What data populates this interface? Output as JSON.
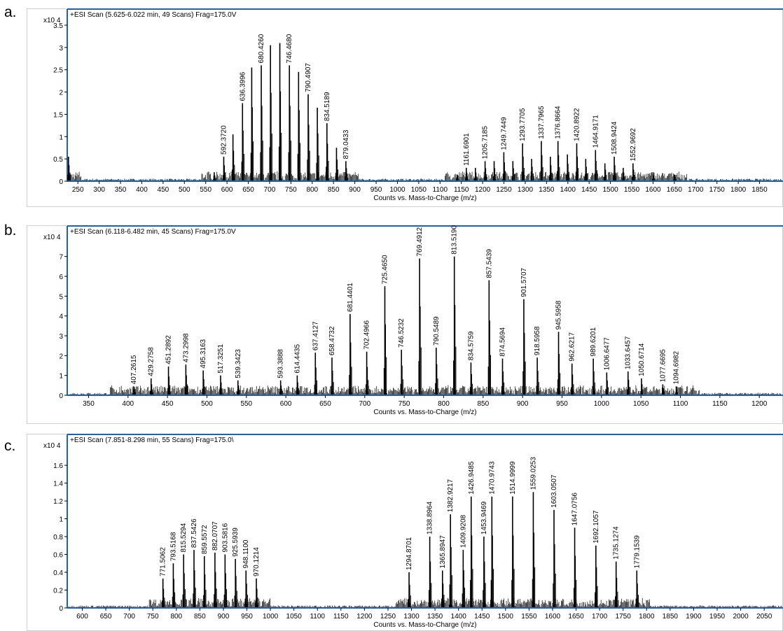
{
  "panels": [
    {
      "letter": "a.",
      "scan_label": "+ESI Scan (5.625-6.022 min, 49 Scans) Frag=175.0V"
    },
    {
      "letter": "b.",
      "scan_label": "+ESI Scan (6.118-6.482 min, 45 Scans) Frag=175.0V"
    },
    {
      "letter": "c.",
      "scan_label": "+ESI Scan (7.851-8.298 min, 55 Scans) Frag=175.0\\"
    }
  ],
  "chart_data": [
    {
      "type": "bar",
      "title": "+ESI Scan (5.625-6.022 min, 49 Scans) Frag=175.0V",
      "xlabel": "Counts vs. Mass-to-Charge (m/z)",
      "ylabel": "",
      "y_multiplier": "x10 4",
      "xlim": [
        225,
        1905
      ],
      "ylim": [
        0,
        3.5
      ],
      "xticks": [
        250,
        300,
        350,
        400,
        450,
        500,
        550,
        600,
        650,
        700,
        750,
        800,
        850,
        900,
        950,
        1000,
        1050,
        1100,
        1150,
        1200,
        1250,
        1300,
        1350,
        1400,
        1450,
        1500,
        1550,
        1600,
        1650,
        1700,
        1750,
        1800,
        1850
      ],
      "yticks": [
        0,
        0.5,
        1,
        1.5,
        2,
        2.5,
        3,
        3.5
      ],
      "peaks": [
        {
          "x": 228,
          "y": 0.55
        },
        {
          "x": 570,
          "y": 0.2
        },
        {
          "x": 592.372,
          "y": 0.55,
          "label": "592.3720"
        },
        {
          "x": 614,
          "y": 1.05
        },
        {
          "x": 636.3996,
          "y": 1.75,
          "label": "636.3996"
        },
        {
          "x": 658,
          "y": 2.55
        },
        {
          "x": 680.426,
          "y": 2.6,
          "label": "680.4260"
        },
        {
          "x": 702,
          "y": 3.05
        },
        {
          "x": 724,
          "y": 3.1
        },
        {
          "x": 746.468,
          "y": 2.6,
          "label": "746.4680"
        },
        {
          "x": 768,
          "y": 2.45
        },
        {
          "x": 790.4907,
          "y": 1.95,
          "label": "790.4907"
        },
        {
          "x": 812,
          "y": 1.65
        },
        {
          "x": 834.5189,
          "y": 1.3,
          "label": "834.5189"
        },
        {
          "x": 857,
          "y": 0.75
        },
        {
          "x": 879.0433,
          "y": 0.45,
          "label": "879.0433"
        },
        {
          "x": 1140,
          "y": 0.15
        },
        {
          "x": 1161.6901,
          "y": 0.3,
          "label": "1161.6901"
        },
        {
          "x": 1183,
          "y": 0.3
        },
        {
          "x": 1205.7185,
          "y": 0.45,
          "label": "1205.7185"
        },
        {
          "x": 1227,
          "y": 0.45
        },
        {
          "x": 1249.7449,
          "y": 0.65,
          "label": "1249.7449"
        },
        {
          "x": 1271,
          "y": 0.45
        },
        {
          "x": 1293.7705,
          "y": 0.85,
          "label": "1293.7705"
        },
        {
          "x": 1315,
          "y": 0.5
        },
        {
          "x": 1337.7965,
          "y": 0.9,
          "label": "1337.7965"
        },
        {
          "x": 1359,
          "y": 0.55
        },
        {
          "x": 1376.8664,
          "y": 0.9,
          "label": "1376.8664"
        },
        {
          "x": 1399,
          "y": 0.6
        },
        {
          "x": 1420.8922,
          "y": 0.85,
          "label": "1420.8922"
        },
        {
          "x": 1442,
          "y": 0.5
        },
        {
          "x": 1464.9171,
          "y": 0.7,
          "label": "1464.9171"
        },
        {
          "x": 1487,
          "y": 0.4
        },
        {
          "x": 1508.9424,
          "y": 0.55,
          "label": "1508.9424"
        },
        {
          "x": 1530,
          "y": 0.3
        },
        {
          "x": 1552.9692,
          "y": 0.4,
          "label": "1552.9692"
        },
        {
          "x": 1600,
          "y": 0.2
        },
        {
          "x": 1650,
          "y": 0.15
        }
      ]
    },
    {
      "type": "bar",
      "title": "+ESI Scan (6.118-6.482 min, 45 Scans) Frag=175.0V",
      "xlabel": "Counts vs. Mass-to-Charge (m/z)",
      "ylabel": "",
      "y_multiplier": "x10 4",
      "xlim": [
        323,
        1230
      ],
      "ylim": [
        0,
        7.8
      ],
      "xticks": [
        350,
        400,
        450,
        500,
        550,
        600,
        650,
        700,
        750,
        800,
        850,
        900,
        950,
        1000,
        1050,
        1100,
        1150,
        1200
      ],
      "yticks": [
        0,
        1,
        2,
        3,
        4,
        5,
        6,
        7
      ],
      "peaks": [
        {
          "x": 407.2615,
          "y": 0.45,
          "label": "407.2615"
        },
        {
          "x": 429.2758,
          "y": 0.85,
          "label": "429.2758"
        },
        {
          "x": 451.2892,
          "y": 1.45,
          "label": "451.2892"
        },
        {
          "x": 473.2998,
          "y": 1.55,
          "label": "473.2998"
        },
        {
          "x": 495.3163,
          "y": 1.25,
          "label": "495.3163"
        },
        {
          "x": 517.3251,
          "y": 1.0,
          "label": "517.3251"
        },
        {
          "x": 539.3423,
          "y": 0.75,
          "label": "539.3423"
        },
        {
          "x": 593.3888,
          "y": 0.75,
          "label": "593.3888"
        },
        {
          "x": 614.4435,
          "y": 1.0,
          "label": "614.4435"
        },
        {
          "x": 637.4127,
          "y": 2.15,
          "label": "637.4127"
        },
        {
          "x": 658.4732,
          "y": 1.9,
          "label": "658.4732"
        },
        {
          "x": 681.4401,
          "y": 4.1,
          "label": "681.4401"
        },
        {
          "x": 702.4966,
          "y": 2.2,
          "label": "702.4966"
        },
        {
          "x": 725.465,
          "y": 5.5,
          "label": "725.4650"
        },
        {
          "x": 746.5232,
          "y": 2.3,
          "label": "746.5232"
        },
        {
          "x": 769.4912,
          "y": 6.9,
          "label": "769.4912"
        },
        {
          "x": 790.5489,
          "y": 2.4,
          "label": "790.5489"
        },
        {
          "x": 813.519,
          "y": 7.0,
          "label": "813.5190"
        },
        {
          "x": 834.5759,
          "y": 1.65,
          "label": "834.5759"
        },
        {
          "x": 857.5439,
          "y": 5.8,
          "label": "857.5439"
        },
        {
          "x": 874.5694,
          "y": 1.85,
          "label": "874.5694"
        },
        {
          "x": 901.5707,
          "y": 4.85,
          "label": "901.5707"
        },
        {
          "x": 918.5958,
          "y": 1.9,
          "label": "918.5958"
        },
        {
          "x": 945.5958,
          "y": 3.2,
          "label": "945.5958"
        },
        {
          "x": 962.6217,
          "y": 1.6,
          "label": "962.6217"
        },
        {
          "x": 989.6201,
          "y": 1.85,
          "label": "989.6201"
        },
        {
          "x": 1006.6477,
          "y": 1.15,
          "label": "1006.6477"
        },
        {
          "x": 1033.6457,
          "y": 1.2,
          "label": "1033.6457"
        },
        {
          "x": 1050.6714,
          "y": 0.85,
          "label": "1050.6714"
        },
        {
          "x": 1077.6695,
          "y": 0.55,
          "label": "1077.6695"
        },
        {
          "x": 1094.6982,
          "y": 0.45,
          "label": "1094.6982"
        }
      ]
    },
    {
      "type": "bar",
      "title": "+ESI Scan (7.851-8.298 min, 55 Scans) Frag=175.0\\",
      "xlabel": "Counts vs. Mass-to-Charge (m/z)",
      "ylabel": "",
      "y_multiplier": "x10 4",
      "xlim": [
        568,
        2090
      ],
      "ylim": [
        0,
        1.75
      ],
      "xticks": [
        600,
        650,
        700,
        750,
        800,
        850,
        900,
        950,
        1000,
        1050,
        1100,
        1150,
        1200,
        1250,
        1300,
        1350,
        1400,
        1450,
        1500,
        1550,
        1600,
        1650,
        1700,
        1750,
        1800,
        1850,
        1900,
        1950,
        2000,
        2050
      ],
      "yticks": [
        0,
        0.2,
        0.4,
        0.6,
        0.8,
        1,
        1.2,
        1.4,
        1.6
      ],
      "peaks": [
        {
          "x": 771.5062,
          "y": 0.33,
          "label": "771.5062"
        },
        {
          "x": 793.5168,
          "y": 0.5,
          "label": "793.5168"
        },
        {
          "x": 815.5294,
          "y": 0.6,
          "label": "815.5294"
        },
        {
          "x": 837.5426,
          "y": 0.65,
          "label": "837.5426"
        },
        {
          "x": 859.5572,
          "y": 0.58,
          "label": "859.5572"
        },
        {
          "x": 882.0707,
          "y": 0.62,
          "label": "882.0707"
        },
        {
          "x": 903.5816,
          "y": 0.6,
          "label": "903.5816"
        },
        {
          "x": 925.5939,
          "y": 0.55,
          "label": "925.5939"
        },
        {
          "x": 948.11,
          "y": 0.42,
          "label": "948.1100"
        },
        {
          "x": 970.1214,
          "y": 0.33,
          "label": "970.1214"
        },
        {
          "x": 1294.8701,
          "y": 0.4,
          "label": "1294.8701"
        },
        {
          "x": 1338.8964,
          "y": 0.8,
          "label": "1338.8964"
        },
        {
          "x": 1365.8947,
          "y": 0.42,
          "label": "1365.8947"
        },
        {
          "x": 1382.9217,
          "y": 1.05,
          "label": "1382.9217"
        },
        {
          "x": 1409.9208,
          "y": 0.65,
          "label": "1409.9208"
        },
        {
          "x": 1426.9485,
          "y": 1.25,
          "label": "1426.9485"
        },
        {
          "x": 1453.9469,
          "y": 0.8,
          "label": "1453.9469"
        },
        {
          "x": 1470.9743,
          "y": 1.25,
          "label": "1470.9743"
        },
        {
          "x": 1514.9999,
          "y": 1.25,
          "label": "1514.9999"
        },
        {
          "x": 1559.0253,
          "y": 1.3,
          "label": "1559.0253"
        },
        {
          "x": 1603.0507,
          "y": 1.1,
          "label": "1603.0507"
        },
        {
          "x": 1647.0756,
          "y": 0.9,
          "label": "1647.0756"
        },
        {
          "x": 1692.1057,
          "y": 0.7,
          "label": "1692.1057"
        },
        {
          "x": 1735.1274,
          "y": 0.52,
          "label": "1735.1274"
        },
        {
          "x": 1779.1539,
          "y": 0.42,
          "label": "1779.1539"
        }
      ]
    }
  ]
}
